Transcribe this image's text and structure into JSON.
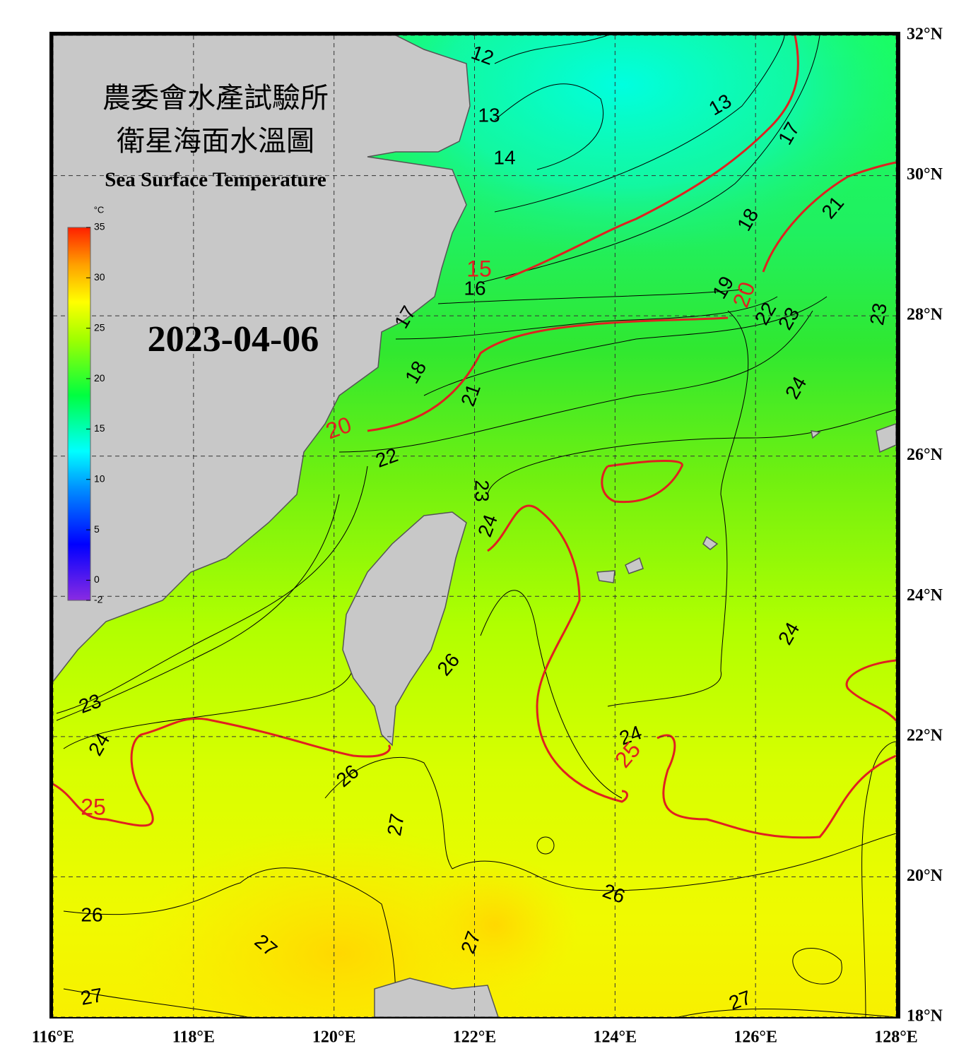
{
  "header": {
    "title_zh_1": "農委會水產試驗所",
    "title_zh_2": "衛星海面水溫圖",
    "title_en": "Sea Surface Temperature",
    "date": "2023-04-06"
  },
  "colorbar": {
    "unit": "°C",
    "range": [
      -2,
      35
    ],
    "ticks": [
      35,
      30,
      25,
      20,
      15,
      10,
      5,
      0,
      -2
    ]
  },
  "map": {
    "xlim": [
      116,
      128
    ],
    "ylim": [
      18,
      32
    ],
    "lon_ticks": [
      {
        "value": 116,
        "label": "116°E"
      },
      {
        "value": 118,
        "label": "118°E"
      },
      {
        "value": 120,
        "label": "120°E"
      },
      {
        "value": 122,
        "label": "122°E"
      },
      {
        "value": 124,
        "label": "124°E"
      },
      {
        "value": 126,
        "label": "126°E"
      },
      {
        "value": 128,
        "label": "128°E"
      }
    ],
    "lat_ticks": [
      {
        "value": 32,
        "label": "32°N"
      },
      {
        "value": 30,
        "label": "30°N"
      },
      {
        "value": 28,
        "label": "28°N"
      },
      {
        "value": 26,
        "label": "26°N"
      },
      {
        "value": 24,
        "label": "24°N"
      },
      {
        "value": 22,
        "label": "22°N"
      },
      {
        "value": 20,
        "label": "20°N"
      },
      {
        "value": 18,
        "label": "18°N"
      }
    ],
    "contour_labels": [
      12,
      13,
      14,
      13,
      17,
      15,
      16,
      18,
      21,
      19,
      20,
      22,
      23,
      23,
      17,
      18,
      21,
      24,
      20,
      22,
      23,
      24,
      24,
      26,
      23,
      24,
      25,
      24,
      25,
      26,
      27,
      26,
      26,
      27,
      27,
      27,
      27
    ]
  }
}
